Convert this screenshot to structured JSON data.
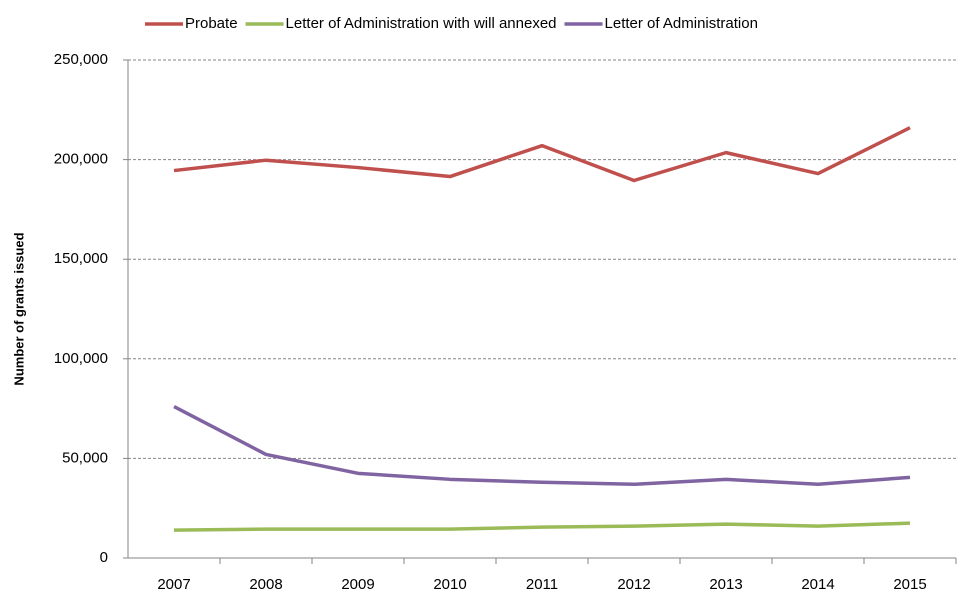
{
  "chart_data": {
    "type": "line",
    "y_label": "Number of grants issued",
    "categories": [
      "2007",
      "2008",
      "2009",
      "2010",
      "2011",
      "2012",
      "2013",
      "2014",
      "2015"
    ],
    "series": [
      {
        "name": "Probate",
        "color": "#c0504d",
        "values": [
          194500,
          199700,
          196000,
          191500,
          207000,
          189500,
          203500,
          193000,
          216000
        ]
      },
      {
        "name": "Letter of Administration with will annexed",
        "color": "#9bbb59",
        "values": [
          14000,
          14500,
          14500,
          14500,
          15500,
          16000,
          17000,
          16000,
          17500
        ]
      },
      {
        "name": "Letter of Administration",
        "color": "#8064a2",
        "values": [
          76000,
          52000,
          42500,
          39500,
          38000,
          37000,
          39500,
          37000,
          40500
        ]
      }
    ],
    "ylim": [
      0,
      250000
    ],
    "yticks": [
      0,
      {
        "value": 50000,
        "label": "50,000"
      },
      {
        "value": 100000,
        "label": "100,000"
      },
      {
        "value": 150000,
        "label": "150,000"
      },
      {
        "value": 200000,
        "label": "200,000"
      },
      {
        "value": 250000,
        "label": "250,000"
      }
    ],
    "grid": true,
    "legend": "top"
  }
}
